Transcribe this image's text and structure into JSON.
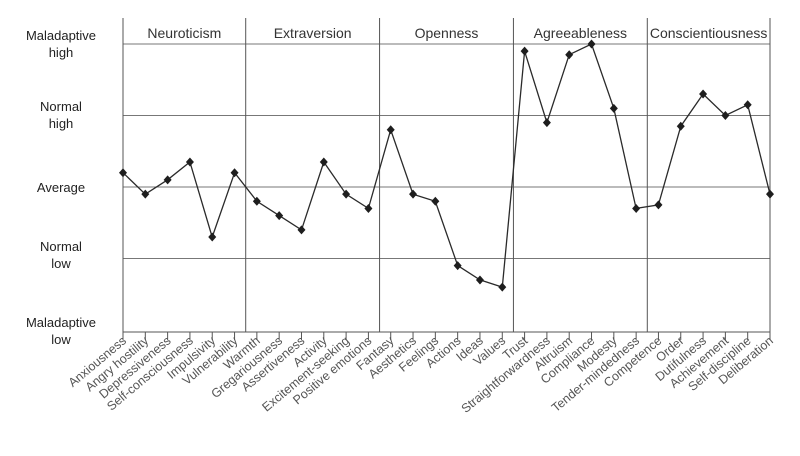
{
  "chart_data": {
    "type": "line",
    "y_levels": [
      "Maladaptive\nhigh",
      "Normal\nhigh",
      "Average",
      "Normal\nlow",
      "Maladaptive\nlow"
    ],
    "domains": [
      {
        "name": "Neuroticism",
        "facets": [
          "Anxiousness",
          "Angry hostility",
          "Depressiveness",
          "Self-consciousness",
          "Impulsivity",
          "Vulnerability"
        ],
        "values": [
          0.2,
          -0.1,
          0.1,
          0.35,
          -0.7,
          0.2
        ]
      },
      {
        "name": "Extraversion",
        "facets": [
          "Warmth",
          "Gregariousness",
          "Assertiveness",
          "Activity",
          "Excitement-seeking",
          "Positive emotions"
        ],
        "values": [
          -0.2,
          -0.4,
          -0.6,
          0.35,
          -0.1,
          -0.3
        ]
      },
      {
        "name": "Openness",
        "facets": [
          "Fantasy",
          "Aesthetics",
          "Feelings",
          "Actions",
          "Ideas",
          "Values"
        ],
        "values": [
          0.8,
          -0.1,
          -0.2,
          -1.1,
          -1.3,
          -1.4
        ]
      },
      {
        "name": "Agreeableness",
        "facets": [
          "Trust",
          "Straightforwardness",
          "Altruism",
          "Compliance",
          "Modesty",
          "Tender-mindedness"
        ],
        "values": [
          1.9,
          0.9,
          1.85,
          2.0,
          1.1,
          -0.3
        ]
      },
      {
        "name": "Conscientiousness",
        "facets": [
          "Competence",
          "Order",
          "Dutifulness",
          "Achievement",
          "Self-discipline",
          "Deliberation"
        ],
        "values": [
          -0.25,
          0.85,
          1.3,
          1.0,
          1.15,
          -0.1
        ]
      }
    ],
    "ylim": [
      -2,
      2
    ],
    "grid": true
  }
}
